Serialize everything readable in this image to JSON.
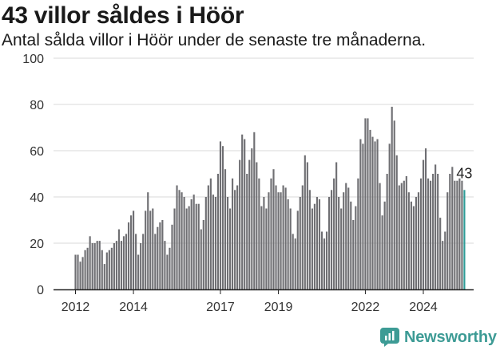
{
  "title": "43 villor såldes i Höör",
  "subtitle": "Antal sålda villor i Höör under de senaste tre månaderna.",
  "brand": {
    "name": "Newsworthy",
    "icon": "newsworthy-logo-icon"
  },
  "colors": {
    "bar": "#6f6f73",
    "highlight": "#2e9c97",
    "axis": "#222222",
    "grid": "#d9d9d9",
    "text": "#333333"
  },
  "chart_data": {
    "type": "bar",
    "title": "43 villor såldes i Höör",
    "subtitle": "Antal sålda villor i Höör under de senaste tre månaderna.",
    "xlabel": "",
    "ylabel": "",
    "ylim": [
      0,
      100
    ],
    "yticks": [
      0,
      20,
      40,
      60,
      80,
      100
    ],
    "xticks": [
      "2012",
      "2014",
      "2017",
      "2019",
      "2022",
      "2024"
    ],
    "grid": true,
    "start": "2012-01",
    "interval": "month",
    "values": [
      15,
      15,
      12,
      14,
      17,
      18,
      23,
      20,
      20,
      21,
      21,
      17,
      11,
      16,
      17,
      18,
      20,
      21,
      26,
      21,
      23,
      24,
      29,
      32,
      34,
      24,
      15,
      20,
      24,
      34,
      42,
      34,
      35,
      24,
      27,
      29,
      30,
      21,
      15,
      18,
      28,
      35,
      45,
      43,
      42,
      40,
      35,
      36,
      39,
      41,
      37,
      37,
      26,
      30,
      40,
      45,
      48,
      41,
      40,
      50,
      64,
      62,
      52,
      40,
      35,
      48,
      43,
      45,
      56,
      67,
      65,
      50,
      56,
      61,
      68,
      55,
      48,
      36,
      40,
      35,
      42,
      48,
      52,
      45,
      42,
      42,
      45,
      44,
      39,
      35,
      24,
      22,
      34,
      40,
      45,
      58,
      55,
      43,
      35,
      37,
      40,
      39,
      25,
      22,
      25,
      40,
      43,
      48,
      55,
      40,
      35,
      42,
      46,
      44,
      38,
      30,
      36,
      48,
      65,
      63,
      74,
      74,
      69,
      66,
      64,
      65,
      46,
      32,
      38,
      50,
      63,
      79,
      73,
      58,
      45,
      46,
      47,
      49,
      42,
      38,
      36,
      40,
      42,
      48,
      56,
      61,
      48,
      47,
      50,
      54,
      50,
      31,
      21,
      25,
      42,
      50,
      53,
      47,
      47,
      48,
      47,
      43
    ],
    "last_value_label": "43"
  }
}
